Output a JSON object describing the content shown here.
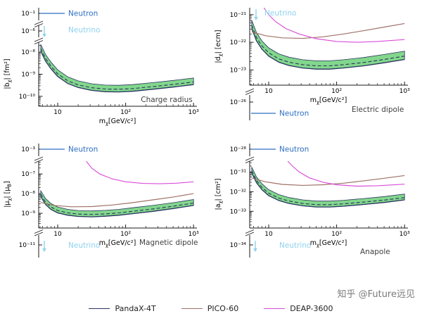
{
  "figure": {
    "watermark": "知乎 @Future远见"
  },
  "colors": {
    "band": "#82d78c",
    "pandax": "#2a3460",
    "pico": "#9e7166",
    "deap": "#d94ed9",
    "neutron": "#2d6fc0",
    "neutrino": "#8fd2ee",
    "axis": "#1a1a1a",
    "title": "#404040"
  },
  "legend": {
    "items": [
      {
        "label": "PandaX-4T",
        "color": "#2a3460"
      },
      {
        "label": "PICO-60",
        "color": "#9e7166"
      },
      {
        "label": "DEAP-3600",
        "color": "#d94ed9"
      }
    ]
  },
  "chart_data": {
    "type": "line",
    "x_scale": "log",
    "y_scale": "log",
    "panels": [
      {
        "id": "charge-radius",
        "title": "Charge radius",
        "xlabel": [
          {
            "t": "m"
          },
          {
            "t": "χ",
            "sub": true
          },
          {
            "t": "[GeV/c²]"
          }
        ],
        "ylabel": [
          {
            "t": "|b"
          },
          {
            "t": "χ",
            "sub": true
          },
          {
            "t": "| [fm²]"
          }
        ],
        "x_range_log": [
          0.72,
          3.05
        ],
        "y_range_log": [
          -10.45,
          -7.55
        ],
        "xticks": [
          {
            "log": 1,
            "label": "10"
          },
          {
            "log": 2,
            "label": "10²"
          },
          {
            "log": 3,
            "label": "10³"
          }
        ],
        "yticks": [
          {
            "log": -8,
            "label": "10⁻⁸"
          },
          {
            "log": -9,
            "label": "10⁻⁹"
          },
          {
            "log": -10,
            "label": "10⁻¹⁰"
          }
        ],
        "stub_ticks": [
          "10⁻¹",
          "10⁻⁶"
        ],
        "annotations": [
          {
            "kind": "neutron",
            "label": "Neutron"
          },
          {
            "kind": "neutrino",
            "label": "Neutrino"
          }
        ],
        "series": [
          {
            "name": "PandaX-4T",
            "type": "band",
            "band_width_dex": 0.3,
            "median_offset_dex": 0.12,
            "points": [
              [
                0.75,
                -7.95
              ],
              [
                0.82,
                -8.4
              ],
              [
                0.9,
                -8.75
              ],
              [
                1.0,
                -9.1
              ],
              [
                1.15,
                -9.42
              ],
              [
                1.3,
                -9.6
              ],
              [
                1.5,
                -9.73
              ],
              [
                1.7,
                -9.79
              ],
              [
                1.9,
                -9.8
              ],
              [
                2.1,
                -9.77
              ],
              [
                2.4,
                -9.68
              ],
              [
                2.7,
                -9.58
              ],
              [
                3.0,
                -9.47
              ]
            ]
          }
        ]
      },
      {
        "id": "electric-dipole",
        "title": "Electric dipole",
        "xlabel": [
          {
            "t": "m"
          },
          {
            "t": "χ",
            "sub": true
          },
          {
            "t": "[GeV/c²]"
          }
        ],
        "ylabel": [
          {
            "t": "|d"
          },
          {
            "t": "χ",
            "sub": true
          },
          {
            "t": "| [ecm]"
          }
        ],
        "x_range_log": [
          0.72,
          3.05
        ],
        "y_range_log": [
          -23.55,
          -20.75
        ],
        "xticks": [
          {
            "log": 1,
            "label": "10"
          },
          {
            "log": 2,
            "label": "10²"
          },
          {
            "log": 3,
            "label": "10³"
          }
        ],
        "yticks": [
          {
            "log": -21,
            "label": "10⁻²¹"
          },
          {
            "log": -22,
            "label": "10⁻²²"
          },
          {
            "log": -23,
            "label": "10⁻²³"
          }
        ],
        "stub_ticks": [
          "10⁻²⁶"
        ],
        "annotations": [
          {
            "kind": "neutrino",
            "label": "Neutrino"
          },
          {
            "kind": "neutron",
            "label": "Neutron"
          }
        ],
        "series": [
          {
            "name": "PandaX-4T",
            "type": "band",
            "band_width_dex": 0.3,
            "median_offset_dex": 0.12,
            "points": [
              [
                0.75,
                -21.5
              ],
              [
                0.82,
                -21.95
              ],
              [
                0.9,
                -22.25
              ],
              [
                1.0,
                -22.5
              ],
              [
                1.15,
                -22.72
              ],
              [
                1.3,
                -22.84
              ],
              [
                1.5,
                -22.93
              ],
              [
                1.7,
                -22.97
              ],
              [
                1.9,
                -22.97
              ],
              [
                2.1,
                -22.93
              ],
              [
                2.4,
                -22.85
              ],
              [
                2.7,
                -22.74
              ],
              [
                3.0,
                -22.62
              ]
            ]
          },
          {
            "name": "PICO-60",
            "type": "line",
            "points": [
              [
                0.75,
                -21.62
              ],
              [
                0.95,
                -21.76
              ],
              [
                1.2,
                -21.84
              ],
              [
                1.5,
                -21.86
              ],
              [
                1.8,
                -21.8
              ],
              [
                2.1,
                -21.7
              ],
              [
                2.4,
                -21.58
              ],
              [
                2.7,
                -21.45
              ],
              [
                3.0,
                -21.32
              ]
            ]
          },
          {
            "name": "DEAP-3600",
            "type": "line",
            "points": [
              [
                0.93,
                -20.75
              ],
              [
                1.0,
                -21.0
              ],
              [
                1.1,
                -21.25
              ],
              [
                1.25,
                -21.5
              ],
              [
                1.45,
                -21.7
              ],
              [
                1.7,
                -21.87
              ],
              [
                2.0,
                -21.97
              ],
              [
                2.3,
                -22.0
              ],
              [
                2.6,
                -21.97
              ],
              [
                3.0,
                -21.9
              ]
            ]
          }
        ]
      },
      {
        "id": "magnetic-dipole",
        "title": "Magnetic dipole",
        "xlabel": [
          {
            "t": "m"
          },
          {
            "t": "χ",
            "sub": true
          },
          {
            "t": "[GeV/c²]"
          }
        ],
        "ylabel": [
          {
            "t": "|μ"
          },
          {
            "t": "χ",
            "sub": true
          },
          {
            "t": "| [μ"
          },
          {
            "t": "B",
            "sub": true
          },
          {
            "t": "]"
          }
        ],
        "x_range_log": [
          0.72,
          3.05
        ],
        "y_range_log": [
          -9.75,
          -6.35
        ],
        "xticks": [
          {
            "log": 1,
            "label": "10"
          },
          {
            "log": 2,
            "label": "10²"
          },
          {
            "log": 3,
            "label": "10³"
          }
        ],
        "yticks": [
          {
            "log": -7,
            "label": "10⁻⁷"
          },
          {
            "log": -8,
            "label": "10⁻⁸"
          },
          {
            "log": -9,
            "label": "10⁻⁹"
          }
        ],
        "stub_ticks": [
          "10⁻³",
          "10⁻¹¹"
        ],
        "annotations": [
          {
            "kind": "neutron",
            "label": "Neutron"
          },
          {
            "kind": "neutrino",
            "label": "Neutrino"
          }
        ],
        "series": [
          {
            "name": "PandaX-4T",
            "type": "band",
            "band_width_dex": 0.3,
            "median_offset_dex": 0.12,
            "points": [
              [
                0.75,
                -8.15
              ],
              [
                0.82,
                -8.55
              ],
              [
                0.9,
                -8.8
              ],
              [
                1.0,
                -8.98
              ],
              [
                1.15,
                -9.1
              ],
              [
                1.3,
                -9.16
              ],
              [
                1.5,
                -9.18
              ],
              [
                1.7,
                -9.15
              ],
              [
                1.9,
                -9.1
              ],
              [
                2.1,
                -9.02
              ],
              [
                2.4,
                -8.9
              ],
              [
                2.7,
                -8.76
              ],
              [
                3.0,
                -8.6
              ]
            ]
          },
          {
            "name": "PICO-60",
            "type": "line",
            "points": [
              [
                0.75,
                -8.45
              ],
              [
                0.95,
                -8.6
              ],
              [
                1.2,
                -8.67
              ],
              [
                1.5,
                -8.66
              ],
              [
                1.8,
                -8.58
              ],
              [
                2.1,
                -8.46
              ],
              [
                2.4,
                -8.32
              ],
              [
                2.7,
                -8.17
              ],
              [
                3.0,
                -8.0
              ]
            ]
          },
          {
            "name": "DEAP-3600",
            "type": "line",
            "points": [
              [
                1.42,
                -6.35
              ],
              [
                1.5,
                -6.7
              ],
              [
                1.62,
                -7.0
              ],
              [
                1.8,
                -7.25
              ],
              [
                2.0,
                -7.4
              ],
              [
                2.25,
                -7.48
              ],
              [
                2.5,
                -7.5
              ],
              [
                2.75,
                -7.47
              ],
              [
                3.0,
                -7.4
              ]
            ]
          }
        ]
      },
      {
        "id": "anapole",
        "title": "Anapole",
        "xlabel": [
          {
            "t": "m"
          },
          {
            "t": "χ",
            "sub": true
          },
          {
            "t": "[GeV/c²]"
          }
        ],
        "ylabel": [
          {
            "t": "|a"
          },
          {
            "t": "χ",
            "sub": true
          },
          {
            "t": "| [cm²]"
          }
        ],
        "x_range_log": [
          0.72,
          3.05
        ],
        "y_range_log": [
          -33.85,
          -30.45
        ],
        "xticks": [
          {
            "log": 1,
            "label": "10"
          },
          {
            "log": 2,
            "label": "10²"
          },
          {
            "log": 3,
            "label": "10³"
          }
        ],
        "yticks": [
          {
            "log": -31,
            "label": "10⁻³¹"
          },
          {
            "log": -32,
            "label": "10⁻³²"
          },
          {
            "log": -33,
            "label": "10⁻³³"
          }
        ],
        "stub_ticks": [
          "10⁻²⁸",
          "10⁻³⁴"
        ],
        "annotations": [
          {
            "kind": "neutron",
            "label": "Neutron"
          },
          {
            "kind": "neutrino",
            "label": "Neutrino"
          }
        ],
        "series": [
          {
            "name": "PandaX-4T",
            "type": "band",
            "band_width_dex": 0.3,
            "median_offset_dex": 0.12,
            "points": [
              [
                0.75,
                -31.05
              ],
              [
                0.82,
                -31.55
              ],
              [
                0.9,
                -31.9
              ],
              [
                1.0,
                -32.2
              ],
              [
                1.15,
                -32.45
              ],
              [
                1.3,
                -32.6
              ],
              [
                1.5,
                -32.72
              ],
              [
                1.7,
                -32.78
              ],
              [
                1.9,
                -32.78
              ],
              [
                2.1,
                -32.74
              ],
              [
                2.4,
                -32.65
              ],
              [
                2.7,
                -32.55
              ],
              [
                3.0,
                -32.42
              ]
            ]
          },
          {
            "name": "PICO-60",
            "type": "line",
            "points": [
              [
                0.75,
                -31.3
              ],
              [
                0.95,
                -31.5
              ],
              [
                1.2,
                -31.63
              ],
              [
                1.5,
                -31.68
              ],
              [
                1.8,
                -31.65
              ],
              [
                2.1,
                -31.57
              ],
              [
                2.4,
                -31.45
              ],
              [
                2.7,
                -31.32
              ],
              [
                3.0,
                -31.18
              ]
            ]
          },
          {
            "name": "DEAP-3600",
            "type": "line",
            "points": [
              [
                1.28,
                -30.45
              ],
              [
                1.35,
                -30.7
              ],
              [
                1.45,
                -31.0
              ],
              [
                1.6,
                -31.3
              ],
              [
                1.8,
                -31.52
              ],
              [
                2.0,
                -31.65
              ],
              [
                2.3,
                -31.72
              ],
              [
                2.6,
                -31.7
              ],
              [
                3.0,
                -31.62
              ]
            ]
          }
        ]
      }
    ]
  }
}
